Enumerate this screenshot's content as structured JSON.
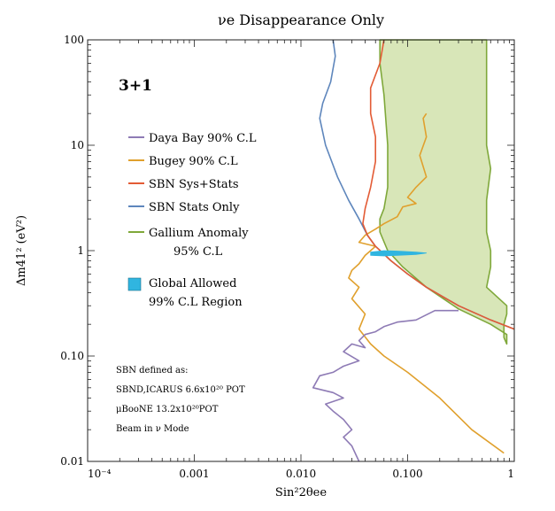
{
  "chart_data": {
    "type": "line",
    "title": "νe Disappearance Only",
    "xlabel": "Sin²2θee",
    "ylabel": "Δm41² (eV²)",
    "x_scale": "log",
    "y_scale": "log",
    "xlim": [
      0.0001,
      1
    ],
    "ylim": [
      0.01,
      100
    ],
    "grid": false,
    "x_tick_labels": [
      "10⁻⁴",
      "0.001",
      "0.010",
      "0.100",
      "1"
    ],
    "y_tick_labels": [
      "0.01",
      "0.10",
      "1",
      "10",
      "100"
    ],
    "model_label": "3+1",
    "legend": {
      "placement": "left",
      "entries": [
        {
          "id": "daya_bay",
          "text": "Daya Bay 90% C.L",
          "color": "#8E7BB5"
        },
        {
          "id": "bugey",
          "text": "Bugey 90% C.L",
          "color": "#E0A02D"
        },
        {
          "id": "sbn_sys",
          "text": "SBN Sys+Stats",
          "color": "#E35B35"
        },
        {
          "id": "sbn_stats",
          "text": "SBN Stats Only",
          "color": "#5E86BC"
        },
        {
          "id": "gallium",
          "text": "Gallium Anomaly",
          "text2": "95% C.L",
          "color": "#7FA83A"
        },
        {
          "id": "global",
          "text": "Global Allowed",
          "text2": "99% C.L Region",
          "color": "#30B5E0"
        }
      ]
    },
    "annotation": {
      "line1": "SBN defined as:",
      "line2": "SBND,ICARUS 6.6x10²⁰ POT",
      "line3": "μBooNE 13.2x10²⁰POT",
      "line4": "Beam in ν Mode"
    },
    "series": [
      {
        "name": "Daya Bay 90% C.L",
        "color": "#8E7BB5",
        "points": [
          [
            0.3,
            0.27
          ],
          [
            0.18,
            0.27
          ],
          [
            0.12,
            0.22
          ],
          [
            0.08,
            0.21
          ],
          [
            0.06,
            0.19
          ],
          [
            0.05,
            0.17
          ],
          [
            0.04,
            0.16
          ],
          [
            0.035,
            0.14
          ],
          [
            0.04,
            0.12
          ],
          [
            0.03,
            0.13
          ],
          [
            0.025,
            0.11
          ],
          [
            0.035,
            0.09
          ],
          [
            0.025,
            0.08
          ],
          [
            0.02,
            0.07
          ],
          [
            0.015,
            0.065
          ],
          [
            0.013,
            0.05
          ],
          [
            0.02,
            0.045
          ],
          [
            0.025,
            0.04
          ],
          [
            0.017,
            0.035
          ],
          [
            0.02,
            0.03
          ],
          [
            0.025,
            0.025
          ],
          [
            0.03,
            0.02
          ],
          [
            0.025,
            0.017
          ],
          [
            0.03,
            0.014
          ],
          [
            0.035,
            0.01
          ]
        ]
      },
      {
        "name": "Bugey 90% C.L",
        "color": "#E0A02D",
        "points": [
          [
            0.15,
            20
          ],
          [
            0.14,
            18
          ],
          [
            0.15,
            12
          ],
          [
            0.13,
            8
          ],
          [
            0.15,
            5
          ],
          [
            0.12,
            4
          ],
          [
            0.1,
            3.2
          ],
          [
            0.12,
            2.8
          ],
          [
            0.09,
            2.6
          ],
          [
            0.08,
            2.1
          ],
          [
            0.06,
            1.8
          ],
          [
            0.05,
            1.6
          ],
          [
            0.04,
            1.4
          ],
          [
            0.035,
            1.2
          ],
          [
            0.05,
            1.1
          ],
          [
            0.045,
            1.0
          ],
          [
            0.04,
            0.9
          ],
          [
            0.035,
            0.75
          ],
          [
            0.03,
            0.65
          ],
          [
            0.028,
            0.55
          ],
          [
            0.035,
            0.45
          ],
          [
            0.03,
            0.35
          ],
          [
            0.04,
            0.25
          ],
          [
            0.035,
            0.18
          ],
          [
            0.045,
            0.13
          ],
          [
            0.06,
            0.1
          ],
          [
            0.1,
            0.07
          ],
          [
            0.2,
            0.04
          ],
          [
            0.4,
            0.02
          ],
          [
            0.8,
            0.012
          ]
        ]
      },
      {
        "name": "SBN Sys+Stats",
        "color": "#E35B35",
        "points": [
          [
            0.06,
            100
          ],
          [
            0.055,
            60
          ],
          [
            0.045,
            35
          ],
          [
            0.045,
            20
          ],
          [
            0.05,
            12
          ],
          [
            0.05,
            7
          ],
          [
            0.045,
            4
          ],
          [
            0.04,
            2.5
          ],
          [
            0.038,
            1.8
          ],
          [
            0.042,
            1.4
          ],
          [
            0.05,
            1.1
          ],
          [
            0.07,
            0.8
          ],
          [
            0.1,
            0.6
          ],
          [
            0.15,
            0.45
          ],
          [
            0.3,
            0.3
          ],
          [
            0.6,
            0.22
          ],
          [
            1.0,
            0.18
          ]
        ]
      },
      {
        "name": "SBN Stats Only",
        "color": "#5E86BC",
        "points": [
          [
            0.02,
            100
          ],
          [
            0.021,
            70
          ],
          [
            0.019,
            40
          ],
          [
            0.016,
            25
          ],
          [
            0.015,
            18
          ],
          [
            0.017,
            10
          ],
          [
            0.022,
            5
          ],
          [
            0.028,
            3
          ],
          [
            0.035,
            2
          ],
          [
            0.042,
            1.4
          ],
          [
            0.05,
            1.1
          ],
          [
            0.07,
            0.8
          ],
          [
            0.1,
            0.6
          ],
          [
            0.15,
            0.45
          ],
          [
            0.3,
            0.3
          ],
          [
            0.6,
            0.22
          ],
          [
            1.0,
            0.18
          ]
        ]
      },
      {
        "name": "Gallium Anomaly 95% C.L",
        "color": "#7FA83A",
        "fill": "#D8E6B8",
        "closed": true,
        "points": [
          [
            0.055,
            100
          ],
          [
            0.055,
            60
          ],
          [
            0.06,
            30
          ],
          [
            0.065,
            10
          ],
          [
            0.065,
            4
          ],
          [
            0.06,
            2.5
          ],
          [
            0.055,
            2
          ],
          [
            0.055,
            1.5
          ],
          [
            0.065,
            1.0
          ],
          [
            0.09,
            0.7
          ],
          [
            0.15,
            0.45
          ],
          [
            0.3,
            0.28
          ],
          [
            0.6,
            0.2
          ],
          [
            0.85,
            0.16
          ],
          [
            0.85,
            0.13
          ],
          [
            0.8,
            0.15
          ],
          [
            0.8,
            0.2
          ],
          [
            0.85,
            0.25
          ],
          [
            0.85,
            0.3
          ],
          [
            0.55,
            0.45
          ],
          [
            0.6,
            0.7
          ],
          [
            0.6,
            1.0
          ],
          [
            0.55,
            1.5
          ],
          [
            0.55,
            3
          ],
          [
            0.6,
            6
          ],
          [
            0.55,
            10
          ],
          [
            0.55,
            30
          ],
          [
            0.55,
            100
          ]
        ]
      },
      {
        "name": "Global Allowed 99% C.L Region",
        "color": "#30B5E0",
        "fill": "#30B5E0",
        "closed": true,
        "points": [
          [
            0.045,
            0.97
          ],
          [
            0.06,
            1.0
          ],
          [
            0.08,
            0.99
          ],
          [
            0.12,
            0.97
          ],
          [
            0.15,
            0.95
          ],
          [
            0.12,
            0.92
          ],
          [
            0.08,
            0.9
          ],
          [
            0.06,
            0.89
          ],
          [
            0.045,
            0.9
          ]
        ]
      }
    ]
  }
}
